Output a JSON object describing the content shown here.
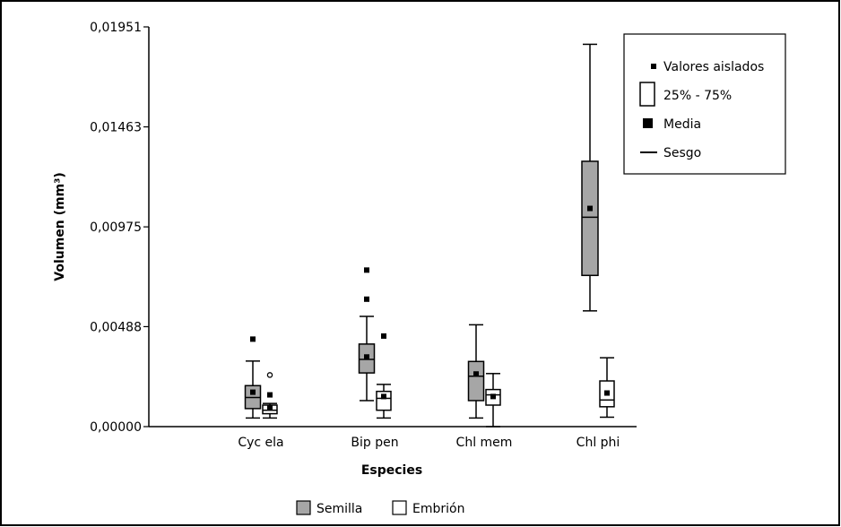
{
  "chart_data": {
    "type": "boxplot",
    "xlabel": "Especies",
    "ylabel": "Volumen (mm³)",
    "ylim": [
      0,
      0.01951
    ],
    "yticks": [
      "0,01951",
      "0,01463",
      "0,00975",
      "0,00488",
      "0,00000"
    ],
    "ytick_values": [
      0.01951,
      0.01463,
      0.00975,
      0.00488,
      0.0
    ],
    "categories": [
      "Cyc ela",
      "Bip pen",
      "Chl mem",
      "Chl phi"
    ],
    "series": [
      {
        "name": "Semilla",
        "color": "#a6a6a6",
        "boxes": [
          {
            "min": 0.00042,
            "q1": 0.00088,
            "median": 0.00142,
            "q3": 0.002,
            "max": 0.0032,
            "mean": 0.00168,
            "outliers": [
              0.00427
            ]
          },
          {
            "min": 0.00127,
            "q1": 0.00262,
            "median": 0.00328,
            "q3": 0.00403,
            "max": 0.00538,
            "mean": 0.0034,
            "outliers": [
              0.00764,
              0.00622
            ]
          },
          {
            "min": 0.00042,
            "q1": 0.00127,
            "median": 0.00246,
            "q3": 0.00318,
            "max": 0.00497,
            "mean": 0.00257,
            "outliers": []
          },
          {
            "min": 0.00565,
            "q1": 0.00738,
            "median": 0.01022,
            "q3": 0.01295,
            "max": 0.01866,
            "mean": 0.01065,
            "outliers": []
          }
        ]
      },
      {
        "name": "Embrión",
        "color": "#ffffff",
        "boxes": [
          {
            "min": 0.00042,
            "q1": 0.00063,
            "median": 0.0008,
            "q3": 0.00105,
            "max": 0.00113,
            "mean": 0.00093,
            "outliers": [
              0.00155
            ],
            "outliers_open": [
              0.00252
            ]
          },
          {
            "min": 0.00042,
            "q1": 0.0008,
            "median": 0.00138,
            "q3": 0.00172,
            "max": 0.00206,
            "mean": 0.00147,
            "outliers": [
              0.00442
            ]
          },
          {
            "min": 0.0,
            "q1": 0.00105,
            "median": 0.00155,
            "q3": 0.00181,
            "max": 0.00259,
            "mean": 0.00147,
            "outliers": []
          },
          {
            "min": 0.00046,
            "q1": 0.00097,
            "median": 0.0013,
            "q3": 0.00223,
            "max": 0.00336,
            "mean": 0.00164,
            "outliers": []
          }
        ]
      }
    ],
    "legend_inside": [
      "Valores aislados",
      "25% - 75%",
      "Media",
      "Sesgo"
    ],
    "legend_inside_placement": "top-right",
    "legend_bottom_placement": "bottom-center",
    "grid": false
  }
}
